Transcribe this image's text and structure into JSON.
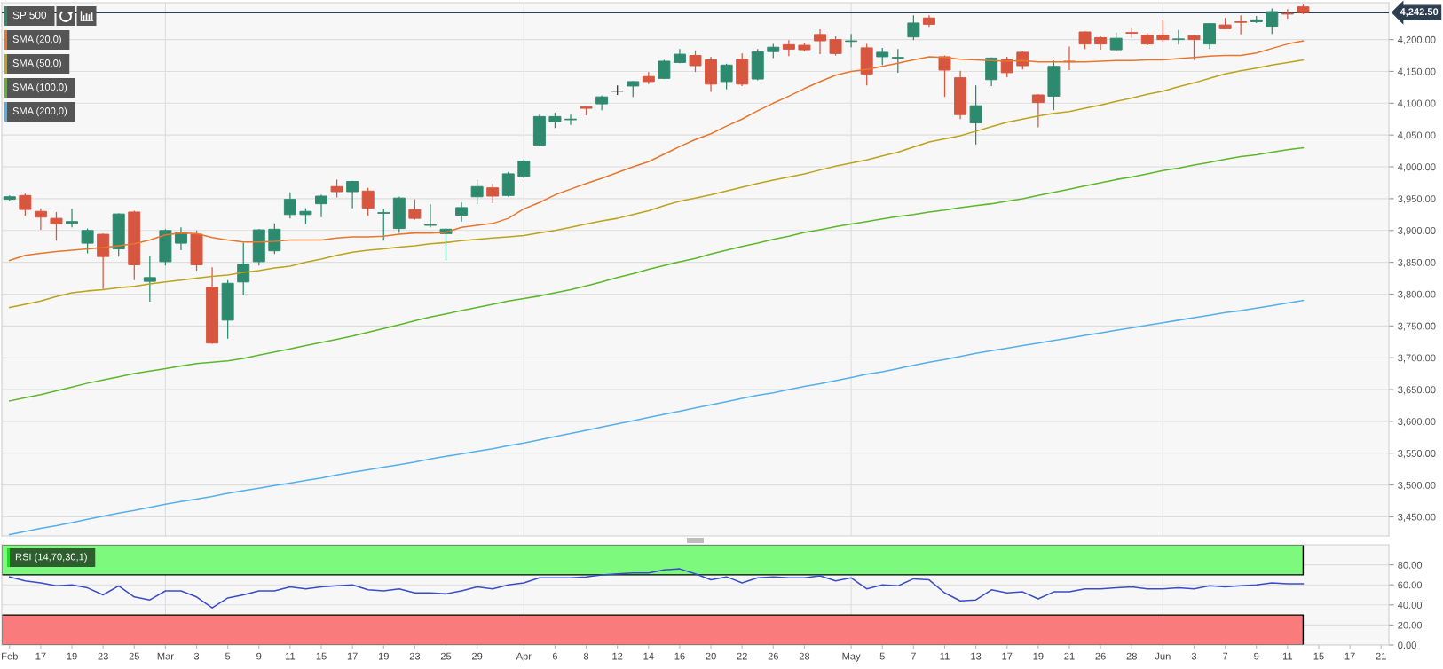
{
  "chart_data": [
    {
      "type": "candlestick",
      "categories": [
        "Feb",
        null,
        "17",
        null,
        "19",
        null,
        "23",
        null,
        "25",
        null,
        "Mar",
        null,
        "3",
        null,
        "5",
        null,
        "9",
        null,
        "11",
        null,
        "15",
        null,
        "17",
        null,
        "19",
        null,
        "23",
        null,
        "25",
        null,
        "29",
        null,
        null,
        "Apr",
        null,
        "6",
        null,
        "8",
        null,
        "12",
        null,
        "14",
        null,
        "16",
        null,
        "20",
        null,
        "22",
        null,
        "26",
        null,
        "28",
        null,
        null,
        "May",
        null,
        "5",
        null,
        "7",
        null,
        "11",
        null,
        "13",
        null,
        "17",
        null,
        "19",
        null,
        "21",
        null,
        "26",
        null,
        "28",
        null,
        "Jun",
        null,
        "3",
        null,
        "7",
        null,
        "9",
        null,
        "11",
        null,
        "15",
        null,
        "17",
        null,
        "21"
      ],
      "tick_labels": "y",
      "ylim": [
        3420,
        4258
      ],
      "yticks": [
        {
          "value": 3450,
          "label": "3,450.00"
        },
        {
          "value": 3500,
          "label": "3,500.00"
        },
        {
          "value": 3550,
          "label": "3,550.00"
        },
        {
          "value": 3600,
          "label": "3,600.00"
        },
        {
          "value": 3650,
          "label": "3,650.00"
        },
        {
          "value": 3700,
          "label": "3,700.00"
        },
        {
          "value": 3750,
          "label": "3,750.00"
        },
        {
          "value": 3800,
          "label": "3,800.00"
        },
        {
          "value": 3850,
          "label": "3,850.00"
        },
        {
          "value": 3900,
          "label": "3,900.00"
        },
        {
          "value": 3950,
          "label": "3,950.00"
        },
        {
          "value": 4000,
          "label": "4,000.00"
        },
        {
          "value": 4050,
          "label": "4,050.00"
        },
        {
          "value": 4100,
          "label": "4,100.00"
        },
        {
          "value": 4150,
          "label": "4,150.00"
        },
        {
          "value": 4200,
          "label": "4,200.00"
        }
      ],
      "grid": "y",
      "legend": "top left",
      "series": [
        {
          "name": "SP 500",
          "color": "#2e8a6e",
          "ohlc": [
            [
              3949,
              3955,
              3946,
              3953
            ],
            [
              3955,
              3958,
              3923,
              3933
            ],
            [
              3930,
              3935,
              3901,
              3921
            ],
            [
              3919,
              3929,
              3884,
              3910
            ],
            [
              3911,
              3934,
              3905,
              3914
            ],
            [
              3880,
              3903,
              3864,
              3900
            ],
            [
              3894,
              3895,
              3808,
              3859
            ],
            [
              3871,
              3927,
              3859,
              3926
            ],
            [
              3929,
              3931,
              3822,
              3846
            ],
            [
              3820,
              3860,
              3788,
              3826
            ],
            [
              3851,
              3902,
              3845,
              3900
            ],
            [
              3880,
              3905,
              3869,
              3896
            ],
            [
              3894,
              3900,
              3837,
              3846
            ],
            [
              3811,
              3842,
              3722,
              3723
            ],
            [
              3759,
              3822,
              3730,
              3817
            ],
            [
              3819,
              3881,
              3798,
              3847
            ],
            [
              3851,
              3902,
              3845,
              3901
            ],
            [
              3868,
              3911,
              3863,
              3902
            ],
            [
              3925,
              3960,
              3919,
              3949
            ],
            [
              3925,
              3935,
              3910,
              3930
            ],
            [
              3942,
              3956,
              3921,
              3954
            ],
            [
              3969,
              3980,
              3952,
              3961
            ],
            [
              3961,
              3978,
              3935,
              3977
            ],
            [
              3962,
              3967,
              3923,
              3935
            ],
            [
              3927,
              3934,
              3884,
              3928
            ],
            [
              3903,
              3953,
              3896,
              3951
            ],
            [
              3933,
              3949,
              3917,
              3919
            ],
            [
              3908,
              3941,
              3905,
              3909
            ],
            [
              3895,
              3904,
              3853,
              3902
            ],
            [
              3924,
              3944,
              3914,
              3936
            ],
            [
              3953,
              3980,
              3941,
              3969
            ],
            [
              3967,
              3974,
              3943,
              3954
            ],
            [
              3955,
              3992,
              3953,
              3989
            ],
            [
              3985,
              4012,
              3982,
              4009
            ],
            [
              4034,
              4082,
              4032,
              4079
            ],
            [
              4071,
              4085,
              4061,
              4079
            ],
            [
              4074,
              4082,
              4066,
              4075
            ],
            [
              4094,
              4095,
              4081,
              4092
            ],
            [
              4099,
              4112,
              4089,
              4110
            ],
            [
              4119,
              4128,
              4113,
              4119
            ],
            [
              4127,
              4135,
              4110,
              4134
            ],
            [
              4142,
              4149,
              4130,
              4134
            ],
            [
              4139,
              4168,
              4138,
              4166
            ],
            [
              4164,
              4185,
              4163,
              4177
            ],
            [
              4175,
              4183,
              4149,
              4159
            ],
            [
              4168,
              4173,
              4118,
              4130
            ],
            [
              4134,
              4162,
              4122,
              4160
            ],
            [
              4169,
              4178,
              4127,
              4130
            ],
            [
              4138,
              4185,
              4136,
              4181
            ],
            [
              4181,
              4193,
              4171,
              4188
            ],
            [
              4192,
              4199,
              4174,
              4185
            ],
            [
              4191,
              4195,
              4182,
              4184
            ],
            [
              4208,
              4216,
              4177,
              4198
            ],
            [
              4200,
              4205,
              4175,
              4178
            ],
            [
              4197,
              4209,
              4188,
              4198
            ],
            [
              4187,
              4193,
              4128,
              4146
            ],
            [
              4173,
              4187,
              4160,
              4180
            ],
            [
              4171,
              4185,
              4148,
              4172
            ],
            [
              4204,
              4238,
              4199,
              4226
            ],
            [
              4234,
              4238,
              4220,
              4224
            ],
            [
              4173,
              4175,
              4110,
              4152
            ],
            [
              4140,
              4151,
              4075,
              4082
            ],
            [
              4069,
              4128,
              4035,
              4096
            ],
            [
              4137,
              4172,
              4127,
              4171
            ],
            [
              4168,
              4173,
              4141,
              4148
            ],
            [
              4180,
              4182,
              4153,
              4159
            ],
            [
              4113,
              4114,
              4062,
              4101
            ],
            [
              4111,
              4167,
              4089,
              4158
            ],
            [
              4166,
              4189,
              4152,
              4165
            ],
            [
              4212,
              4213,
              4185,
              4193
            ],
            [
              4203,
              4205,
              4184,
              4193
            ],
            [
              4184,
              4211,
              4182,
              4202
            ],
            [
              4211,
              4218,
              4203,
              4210
            ],
            [
              4207,
              4210,
              4191,
              4193
            ],
            [
              4207,
              4231,
              4196,
              4200
            ],
            [
              4200,
              4215,
              4192,
              4201
            ],
            [
              4206,
              4207,
              4168,
              4200
            ],
            [
              4193,
              4226,
              4185,
              4225
            ],
            [
              4223,
              4234,
              4216,
              4217
            ],
            [
              4228,
              4238,
              4208,
              4227
            ],
            [
              4228,
              4237,
              4226,
              4231
            ],
            [
              4221,
              4249,
              4209,
              4244
            ],
            [
              4241,
              4248,
              4233,
              4240
            ],
            [
              4251.5,
              4255,
              4240,
              4242.5
            ],
            null,
            null,
            null,
            null,
            null
          ],
          "colors": [
            "#2e8a6e",
            "#d65640",
            "#d65640",
            "#d65640",
            "#2e8a6e",
            "#2e8a6e",
            "#d65640",
            "#2e8a6e",
            "#d65640",
            "#2e8a6e",
            "#2e8a6e",
            "#2e8a6e",
            "#d65640",
            "#d65640",
            "#2e8a6e",
            "#2e8a6e",
            "#2e8a6e",
            "#2e8a6e",
            "#2e8a6e",
            "#2e8a6e",
            "#2e8a6e",
            "#d65640",
            "#2e8a6e",
            "#d65640",
            "#2e8a6e",
            "#2e8a6e",
            "#d65640",
            "#2e8a6e",
            "#2e8a6e",
            "#2e8a6e",
            "#2e8a6e",
            "#d65640",
            "#2e8a6e",
            "#2e8a6e",
            "#2e8a6e",
            "#2e8a6e",
            "#2e8a6e",
            "#d65640",
            "#2e8a6e",
            "#333333",
            "#2e8a6e",
            "#d65640",
            "#2e8a6e",
            "#2e8a6e",
            "#d65640",
            "#d65640",
            "#2e8a6e",
            "#d65640",
            "#2e8a6e",
            "#2e8a6e",
            "#d65640",
            "#d65640",
            "#d65640",
            "#d65640",
            "#2e8a6e",
            "#d65640",
            "#2e8a6e",
            "#2e8a6e",
            "#2e8a6e",
            "#d65640",
            "#d65640",
            "#d65640",
            "#2e8a6e",
            "#2e8a6e",
            "#d65640",
            "#d65640",
            "#d65640",
            "#2e8a6e",
            "#d65640",
            "#d65640",
            "#d65640",
            "#2e8a6e",
            "#d65640",
            "#d65640",
            "#d65640",
            "#2e8a6e",
            "#d65640",
            "#2e8a6e",
            "#d65640",
            "#d65640",
            "#2e8a6e",
            "#2e8a6e",
            "#d65640",
            "#d65640",
            null,
            null,
            null,
            null,
            null
          ]
        },
        {
          "name": "SMA (20,0)",
          "type": "line",
          "color": "#e8762c",
          "values": [
            3853,
            3861,
            3864,
            3867,
            3869,
            3871,
            3873,
            3876,
            3879,
            3885,
            3893,
            3896,
            3895,
            3889,
            3885,
            3882,
            3882,
            3883,
            3885,
            3885,
            3885,
            3888,
            3890,
            3890,
            3891,
            3894,
            3896,
            3896,
            3897,
            3905,
            3908,
            3911,
            3919,
            3934,
            3944,
            3956,
            3965,
            3974,
            3982,
            3991,
            4000,
            4008,
            4020,
            4032,
            4043,
            4052,
            4064,
            4075,
            4088,
            4100,
            4111,
            4123,
            4134,
            4144,
            4150,
            4153,
            4158,
            4163,
            4168,
            4173,
            4172,
            4169,
            4168,
            4167,
            4166,
            4167,
            4165,
            4165,
            4165,
            4165,
            4166,
            4167,
            4167,
            4168,
            4168,
            4170,
            4172,
            4174,
            4175,
            4175,
            4179,
            4186,
            4193,
            4198,
            null,
            null,
            null,
            null,
            null
          ]
        },
        {
          "name": "SMA (50,0)",
          "type": "line",
          "color": "#bda31c",
          "values": [
            3779,
            3784,
            3789,
            3796,
            3802,
            3805,
            3807,
            3810,
            3812,
            3816,
            3819,
            3822,
            3825,
            3828,
            3830,
            3834,
            3837,
            3841,
            3844,
            3850,
            3855,
            3861,
            3866,
            3869,
            3871,
            3874,
            3876,
            3879,
            3881,
            3884,
            3886,
            3888,
            3890,
            3892,
            3896,
            3900,
            3905,
            3910,
            3915,
            3919,
            3925,
            3931,
            3939,
            3946,
            3951,
            3956,
            3962,
            3968,
            3974,
            3979,
            3984,
            3989,
            3995,
            4001,
            4006,
            4011,
            4017,
            4023,
            4031,
            4039,
            4044,
            4049,
            4056,
            4063,
            4070,
            4075,
            4080,
            4084,
            4087,
            4092,
            4097,
            4103,
            4108,
            4114,
            4119,
            4126,
            4132,
            4139,
            4146,
            4151,
            4155,
            4160,
            4164,
            4168,
            null,
            null,
            null,
            null,
            null
          ]
        },
        {
          "name": "SMA (100,0)",
          "type": "line",
          "color": "#5cb82a",
          "values": [
            3632,
            3637,
            3642,
            3648,
            3654,
            3660,
            3665,
            3670,
            3675,
            3679,
            3683,
            3687,
            3691,
            3693,
            3695,
            3699,
            3704,
            3709,
            3714,
            3719,
            3724,
            3729,
            3734,
            3740,
            3746,
            3752,
            3758,
            3764,
            3769,
            3774,
            3779,
            3784,
            3789,
            3793,
            3797,
            3802,
            3807,
            3813,
            3819,
            3826,
            3832,
            3839,
            3845,
            3851,
            3856,
            3863,
            3869,
            3875,
            3880,
            3886,
            3891,
            3897,
            3901,
            3906,
            3910,
            3914,
            3918,
            3922,
            3925,
            3929,
            3932,
            3936,
            3939,
            3942,
            3946,
            3950,
            3955,
            3960,
            3965,
            3970,
            3975,
            3980,
            3984,
            3989,
            3994,
            3998,
            4003,
            4007,
            4012,
            4016,
            4019,
            4023,
            4027,
            4030,
            null,
            null,
            null,
            null,
            null
          ]
        },
        {
          "name": "SMA (200,0)",
          "type": "line",
          "color": "#55b0ea",
          "values": [
            3422,
            3427,
            3432,
            3436,
            3441,
            3446,
            3451,
            3456,
            3460,
            3465,
            3470,
            3474,
            3478,
            3482,
            3487,
            3491,
            3495,
            3499,
            3503,
            3507,
            3511,
            3516,
            3520,
            3524,
            3528,
            3532,
            3536,
            3541,
            3545,
            3549,
            3553,
            3557,
            3562,
            3566,
            3571,
            3576,
            3581,
            3586,
            3591,
            3596,
            3601,
            3606,
            3611,
            3616,
            3621,
            3626,
            3631,
            3636,
            3641,
            3645,
            3650,
            3655,
            3659,
            3664,
            3669,
            3674,
            3678,
            3683,
            3688,
            3693,
            3697,
            3702,
            3707,
            3711,
            3715,
            3719,
            3723,
            3727,
            3731,
            3735,
            3739,
            3743,
            3747,
            3751,
            3755,
            3759,
            3763,
            3767,
            3771,
            3774,
            3778,
            3782,
            3786,
            3790,
            null,
            null,
            null,
            null,
            null
          ]
        }
      ],
      "ref_lines": [
        {
          "axis": "y",
          "value": 4242.5,
          "label": "4,242.50",
          "color": "#2c3e50"
        },
        {
          "axis": "x",
          "value": "Mar",
          "color": "#dddddd"
        },
        {
          "axis": "x",
          "value": "Apr",
          "color": "#dddddd"
        },
        {
          "axis": "x",
          "value": "May",
          "color": "#dddddd"
        },
        {
          "axis": "x",
          "value": "Jun",
          "color": "#dddddd"
        }
      ]
    },
    {
      "type": "line",
      "title": "RSI (14,70,30,1)",
      "categories": [
        "Feb",
        null,
        "17",
        null,
        "19",
        null,
        "23",
        null,
        "25",
        null,
        "Mar",
        null,
        "3",
        null,
        "5",
        null,
        "9",
        null,
        "11",
        null,
        "15",
        null,
        "17",
        null,
        "19",
        null,
        "23",
        null,
        "25",
        null,
        "29",
        null,
        null,
        "Apr",
        null,
        "6",
        null,
        "8",
        null,
        "12",
        null,
        "14",
        null,
        "16",
        null,
        "20",
        null,
        "22",
        null,
        "26",
        null,
        "28",
        null,
        null,
        "May",
        null,
        "5",
        null,
        "7",
        null,
        "11",
        null,
        "13",
        null,
        "17",
        null,
        "19",
        null,
        "21",
        null,
        "26",
        null,
        "28",
        null,
        "Jun",
        null,
        "3",
        null,
        "7",
        null,
        "9",
        null,
        "11",
        null,
        "15",
        null,
        "17",
        null,
        "21"
      ],
      "ylim": [
        0,
        100
      ],
      "yticks": [
        {
          "value": 0,
          "label": "0.00"
        },
        {
          "value": 20,
          "label": "20.00"
        },
        {
          "value": 40,
          "label": "40.00"
        },
        {
          "value": 60,
          "label": "60.00"
        },
        {
          "value": 80,
          "label": "80.00"
        }
      ],
      "grid": "y",
      "series": [
        {
          "color": "#3a4cc8",
          "values": [
            68,
            64,
            62,
            59,
            60,
            57,
            50,
            59,
            48,
            45,
            54,
            54,
            48,
            37,
            47,
            50,
            54,
            54,
            58,
            56,
            58,
            59,
            60,
            55,
            54,
            56,
            52,
            52,
            51,
            54,
            58,
            56,
            60,
            62,
            67,
            67,
            67,
            68,
            70,
            71,
            72,
            72,
            75,
            76,
            71,
            65,
            68,
            62,
            67,
            68,
            67,
            67,
            69,
            64,
            67,
            56,
            60,
            59,
            66,
            65,
            52,
            44,
            45,
            55,
            52,
            53,
            46,
            53,
            53,
            56,
            56,
            57,
            58,
            56,
            56,
            57,
            56,
            59,
            58,
            59,
            60,
            62,
            61,
            61,
            null,
            null,
            null,
            null,
            null
          ]
        }
      ],
      "bands": [
        {
          "axis": "y",
          "from": 70,
          "to": 100,
          "color": "#7dfa7d"
        },
        {
          "axis": "y",
          "from": 0,
          "to": 30,
          "color": "#f97b7b"
        }
      ],
      "ref_lines": [
        {
          "axis": "x",
          "value": "Mar",
          "color": "#dddddd"
        },
        {
          "axis": "x",
          "value": "Apr",
          "color": "#dddddd"
        },
        {
          "axis": "x",
          "value": "May",
          "color": "#dddddd"
        },
        {
          "axis": "x",
          "value": "Jun",
          "color": "#dddddd"
        }
      ]
    }
  ]
}
